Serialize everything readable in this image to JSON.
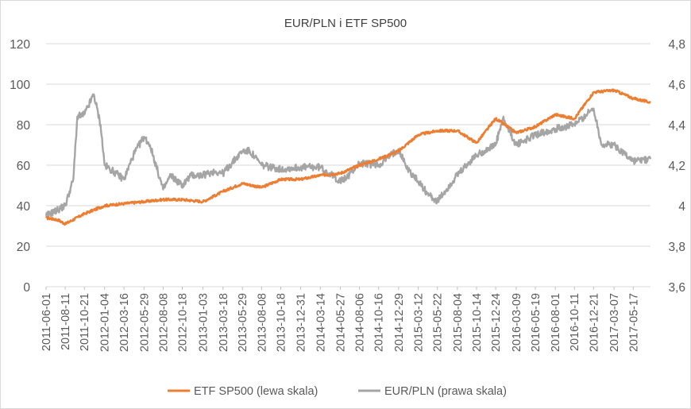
{
  "chart_data": {
    "type": "line",
    "title": "EUR/PLN i ETF SP500",
    "xlabel": "",
    "ylabel_left": "",
    "ylabel_right": "",
    "x_tick_labels": [
      "2011-06-01",
      "2011-08-11",
      "2011-10-21",
      "2012-01-04",
      "2012-03-16",
      "2012-05-29",
      "2012-08-08",
      "2012-10-18",
      "2013-01-03",
      "2013-03-18",
      "2013-05-29",
      "2013-08-08",
      "2013-10-18",
      "2013-12-31",
      "2014-03-14",
      "2014-05-27",
      "2014-08-06",
      "2014-10-16",
      "2014-12-29",
      "2015-03-12",
      "2015-05-22",
      "2015-08-04",
      "2015-10-14",
      "2015-12-24",
      "2016-03-09",
      "2016-05-19",
      "2016-08-01",
      "2016-10-11",
      "2016-12-21",
      "2017-03-07",
      "2017-05-17"
    ],
    "y_left": {
      "min": 0,
      "max": 120,
      "step": 20,
      "tick_labels": [
        "0",
        "20",
        "40",
        "60",
        "80",
        "100",
        "120"
      ]
    },
    "y_right": {
      "min": 3.6,
      "max": 4.8,
      "step": 0.2,
      "tick_labels": [
        "3,6",
        "3,8",
        "4",
        "4,2",
        "4,4",
        "4,6",
        "4,8"
      ]
    },
    "grid": "horizontal",
    "legend_position": "bottom",
    "series": [
      {
        "name": "ETF SP500 (lewa skala)",
        "axis": "left",
        "color": "#ED7D31",
        "x": [
          "2011-06-01",
          "2011-07-15",
          "2011-08-11",
          "2011-10-21",
          "2012-01-04",
          "2012-03-16",
          "2012-05-29",
          "2012-08-08",
          "2012-10-18",
          "2013-01-03",
          "2013-03-18",
          "2013-05-29",
          "2013-08-08",
          "2013-10-18",
          "2013-12-31",
          "2014-03-14",
          "2014-05-27",
          "2014-08-06",
          "2014-10-16",
          "2014-12-29",
          "2015-03-12",
          "2015-05-22",
          "2015-08-04",
          "2015-10-14",
          "2015-12-24",
          "2016-03-09",
          "2016-05-19",
          "2016-08-01",
          "2016-10-11",
          "2016-12-21",
          "2017-03-07",
          "2017-05-17",
          "2017-07-20"
        ],
        "values": [
          34,
          33,
          31,
          36,
          40,
          41,
          42,
          43,
          43,
          42,
          47,
          51,
          49,
          53,
          53,
          55,
          56,
          60,
          63,
          67,
          75,
          77,
          77,
          71,
          83,
          76,
          79,
          85,
          83,
          96,
          97,
          93,
          91
        ]
      },
      {
        "name": "EUR/PLN (prawa skala)",
        "axis": "right",
        "color": "#A5A5A5",
        "x": [
          "2011-06-01",
          "2011-07-15",
          "2011-08-11",
          "2011-09-10",
          "2011-09-25",
          "2011-10-21",
          "2011-11-25",
          "2011-12-20",
          "2012-01-04",
          "2012-02-15",
          "2012-03-16",
          "2012-04-20",
          "2012-05-29",
          "2012-06-20",
          "2012-08-08",
          "2012-09-05",
          "2012-10-18",
          "2012-11-20",
          "2013-01-03",
          "2013-02-15",
          "2013-03-18",
          "2013-05-29",
          "2013-06-25",
          "2013-08-08",
          "2013-10-18",
          "2013-12-31",
          "2014-03-14",
          "2014-05-27",
          "2014-06-20",
          "2014-08-06",
          "2014-10-16",
          "2014-12-29",
          "2015-02-01",
          "2015-03-12",
          "2015-04-15",
          "2015-05-22",
          "2015-08-04",
          "2015-10-14",
          "2015-12-24",
          "2016-01-20",
          "2016-03-09",
          "2016-05-19",
          "2016-08-01",
          "2016-10-11",
          "2016-12-21",
          "2017-01-20",
          "2017-03-07",
          "2017-05-17",
          "2017-07-20"
        ],
        "values": [
          3.95,
          3.98,
          4.0,
          4.13,
          4.44,
          4.45,
          4.55,
          4.4,
          4.2,
          4.16,
          4.13,
          4.25,
          4.34,
          4.3,
          4.08,
          4.15,
          4.1,
          4.15,
          4.15,
          4.17,
          4.16,
          4.27,
          4.27,
          4.2,
          4.18,
          4.19,
          4.19,
          4.12,
          4.14,
          4.21,
          4.2,
          4.28,
          4.18,
          4.12,
          4.06,
          4.02,
          4.15,
          4.25,
          4.3,
          4.43,
          4.3,
          4.35,
          4.38,
          4.4,
          4.48,
          4.3,
          4.3,
          4.22,
          4.23
        ]
      }
    ]
  }
}
